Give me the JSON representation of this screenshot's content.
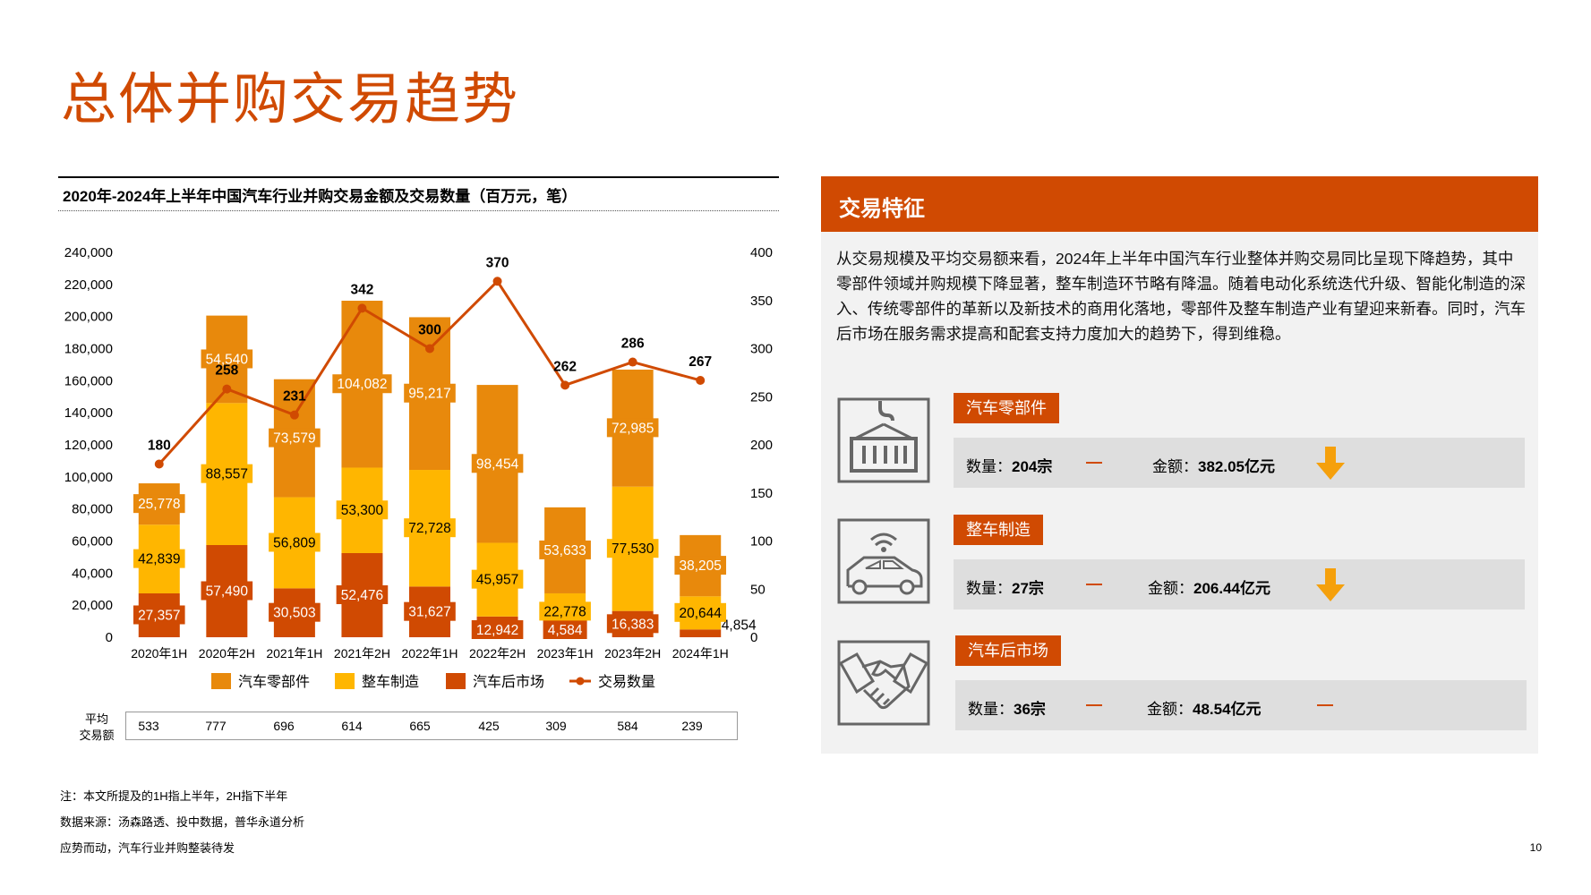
{
  "page": {
    "title": "总体并购交易趋势",
    "page_number": "10",
    "notes": [
      "注：本文所提及的1H指上半年，2H指下半年",
      "数据来源：汤森路透、投中数据，普华永道分析",
      "应势而动，汽车行业并购整装待发"
    ]
  },
  "colors": {
    "accent": "#d04a02",
    "parts": "#e8890c",
    "vehicle": "#ffb600",
    "aftermarket": "#d04a02",
    "arrow": "#f5a00c",
    "panel_bg": "#f2f2f2",
    "bar_bg": "#dedede"
  },
  "chart_data": {
    "type": "bar",
    "stacked": true,
    "title": "2020年-2024年上半年中国汽车行业并购交易金额及交易数量（百万元，笔）",
    "categories": [
      "2020年1H",
      "2020年2H",
      "2021年1H",
      "2021年2H",
      "2022年1H",
      "2022年2H",
      "2023年1H",
      "2023年2H",
      "2024年1H"
    ],
    "series": [
      {
        "name": "汽车后市场",
        "values": [
          27357,
          57490,
          30503,
          52476,
          31627,
          12942,
          4584,
          16383,
          4854
        ]
      },
      {
        "name": "整车制造",
        "values": [
          42839,
          88557,
          56809,
          53300,
          72728,
          45957,
          22778,
          77530,
          20644
        ]
      },
      {
        "name": "汽车零部件",
        "values": [
          25778,
          54540,
          73579,
          104082,
          95217,
          98454,
          53633,
          72985,
          38205
        ]
      }
    ],
    "line": {
      "name": "交易数量",
      "values": [
        180,
        258,
        231,
        342,
        300,
        370,
        262,
        286,
        267
      ]
    },
    "ylim_left": [
      0,
      240000
    ],
    "ylim_right": [
      0,
      400
    ],
    "yticks_left": [
      "0",
      "20,000",
      "40,000",
      "60,000",
      "80,000",
      "100,000",
      "120,000",
      "140,000",
      "160,000",
      "180,000",
      "200,000",
      "220,000",
      "240,000"
    ],
    "yticks_right": [
      "0",
      "50",
      "100",
      "150",
      "200",
      "250",
      "300",
      "350",
      "400"
    ],
    "legend": [
      "汽车零部件",
      "整车制造",
      "汽车后市场",
      "交易数量"
    ],
    "legend_position": "bottom",
    "avg_label": [
      "平均",
      "交易额"
    ],
    "avg_values": [
      "533",
      "777",
      "696",
      "614",
      "665",
      "425",
      "309",
      "584",
      "239"
    ]
  },
  "panel": {
    "title": "交易特征",
    "text": "从交易规模及平均交易额来看，2024年上半年中国汽车行业整体并购交易同比呈现下降趋势，其中零部件领域并购规模下降显著，整车制造环节略有降温。随着电动化系统迭代升级、智能化制造的深入、传统零部件的革新以及新技术的商用化落地，零部件及整车制造产业有望迎来新春。同时，汽车后市场在服务需求提高和配套支持力度加大的趋势下，得到维稳。",
    "categories": [
      {
        "name": "汽车零部件",
        "count_label": "数量：",
        "count": "204宗",
        "amount_label": "金额：",
        "amount": "382.05亿元",
        "trend": "down",
        "icon": "container-crane-icon"
      },
      {
        "name": "整车制造",
        "count_label": "数量：",
        "count": "27宗",
        "amount_label": "金额：",
        "amount": "206.44亿元",
        "trend": "down",
        "icon": "connected-car-icon"
      },
      {
        "name": "汽车后市场",
        "count_label": "数量：",
        "count": "36宗",
        "amount_label": "金额：",
        "amount": "48.54亿元",
        "trend": "flat",
        "icon": "handshake-icon"
      }
    ]
  }
}
